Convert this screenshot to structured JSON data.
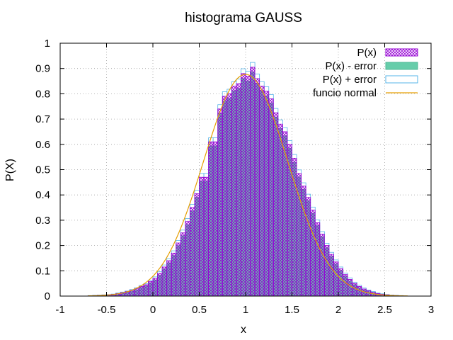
{
  "chart_data": {
    "type": "bar",
    "title": "histograma GAUSS",
    "xlabel": "x",
    "ylabel": "P(X)",
    "xlim": [
      -1,
      3
    ],
    "ylim": [
      0,
      1
    ],
    "xticks": [
      "-1",
      "-0.5",
      "0",
      "0.5",
      "1",
      "1.5",
      "2",
      "2.5",
      "3"
    ],
    "yticks": [
      "0",
      "0.1",
      "0.2",
      "0.3",
      "0.4",
      "0.5",
      "0.6",
      "0.7",
      "0.8",
      "0.9",
      "1"
    ],
    "grid": true,
    "legend_position": "top-right",
    "legend": [
      "P(x)",
      "P(x) - error",
      "P(x) + error",
      "funcio normal"
    ],
    "bin_width": 0.05,
    "x": [
      -0.675,
      -0.625,
      -0.575,
      -0.525,
      -0.475,
      -0.425,
      -0.375,
      -0.325,
      -0.275,
      -0.225,
      -0.175,
      -0.125,
      -0.075,
      -0.025,
      0.025,
      0.075,
      0.125,
      0.175,
      0.225,
      0.275,
      0.325,
      0.375,
      0.425,
      0.475,
      0.525,
      0.575,
      0.625,
      0.675,
      0.725,
      0.775,
      0.825,
      0.875,
      0.925,
      0.975,
      1.025,
      1.075,
      1.125,
      1.175,
      1.225,
      1.275,
      1.325,
      1.375,
      1.425,
      1.475,
      1.525,
      1.575,
      1.625,
      1.675,
      1.725,
      1.775,
      1.825,
      1.875,
      1.925,
      1.975,
      2.025,
      2.075,
      2.125,
      2.175,
      2.225,
      2.275,
      2.325,
      2.375,
      2.425,
      2.475,
      2.525,
      2.575,
      2.625,
      2.675
    ],
    "series": [
      {
        "name": "P(x)",
        "values": [
          0.001,
          0.002,
          0.003,
          0.004,
          0.005,
          0.007,
          0.01,
          0.014,
          0.018,
          0.023,
          0.029,
          0.038,
          0.045,
          0.058,
          0.07,
          0.09,
          0.115,
          0.14,
          0.17,
          0.21,
          0.25,
          0.295,
          0.35,
          0.405,
          0.47,
          0.47,
          0.61,
          0.61,
          0.74,
          0.79,
          0.8,
          0.83,
          0.84,
          0.88,
          0.87,
          0.905,
          0.86,
          0.83,
          0.81,
          0.78,
          0.725,
          0.68,
          0.65,
          0.6,
          0.545,
          0.485,
          0.435,
          0.39,
          0.34,
          0.29,
          0.245,
          0.2,
          0.165,
          0.135,
          0.108,
          0.085,
          0.066,
          0.05,
          0.038,
          0.028,
          0.021,
          0.015,
          0.01,
          0.007,
          0.005,
          0.003,
          0.002,
          0.001
        ]
      },
      {
        "name": "P(x) - error",
        "values": [
          0.0,
          0.001,
          0.002,
          0.003,
          0.004,
          0.006,
          0.008,
          0.012,
          0.016,
          0.02,
          0.025,
          0.034,
          0.041,
          0.053,
          0.064,
          0.083,
          0.107,
          0.132,
          0.161,
          0.2,
          0.239,
          0.283,
          0.337,
          0.391,
          0.455,
          0.455,
          0.594,
          0.594,
          0.723,
          0.772,
          0.782,
          0.812,
          0.822,
          0.861,
          0.851,
          0.886,
          0.842,
          0.812,
          0.792,
          0.763,
          0.708,
          0.663,
          0.634,
          0.585,
          0.53,
          0.471,
          0.422,
          0.377,
          0.328,
          0.279,
          0.235,
          0.191,
          0.157,
          0.127,
          0.101,
          0.079,
          0.06,
          0.045,
          0.033,
          0.024,
          0.018,
          0.012,
          0.008,
          0.005,
          0.004,
          0.002,
          0.001,
          0.0
        ]
      },
      {
        "name": "P(x) + error",
        "values": [
          0.002,
          0.003,
          0.004,
          0.005,
          0.006,
          0.008,
          0.012,
          0.016,
          0.02,
          0.026,
          0.033,
          0.042,
          0.049,
          0.063,
          0.076,
          0.097,
          0.123,
          0.148,
          0.179,
          0.22,
          0.261,
          0.307,
          0.363,
          0.419,
          0.485,
          0.485,
          0.626,
          0.626,
          0.757,
          0.808,
          0.818,
          0.848,
          0.858,
          0.899,
          0.889,
          0.924,
          0.878,
          0.848,
          0.828,
          0.797,
          0.742,
          0.697,
          0.666,
          0.615,
          0.56,
          0.499,
          0.448,
          0.403,
          0.352,
          0.301,
          0.255,
          0.209,
          0.173,
          0.143,
          0.115,
          0.091,
          0.072,
          0.055,
          0.043,
          0.032,
          0.024,
          0.018,
          0.012,
          0.009,
          0.006,
          0.004,
          0.003,
          0.002
        ]
      },
      {
        "name": "funcio normal",
        "mean": 1.0,
        "sigma": 0.455
      }
    ]
  },
  "colors": {
    "px_hatch": "#9400d3",
    "fill_minus": "#66cdaa",
    "fill_minus_stroke": "#4db895",
    "stroke_plus": "#56b4e9",
    "normal_line": "#e69f00",
    "grid": "#a0a0a0",
    "axis": "#000000"
  }
}
